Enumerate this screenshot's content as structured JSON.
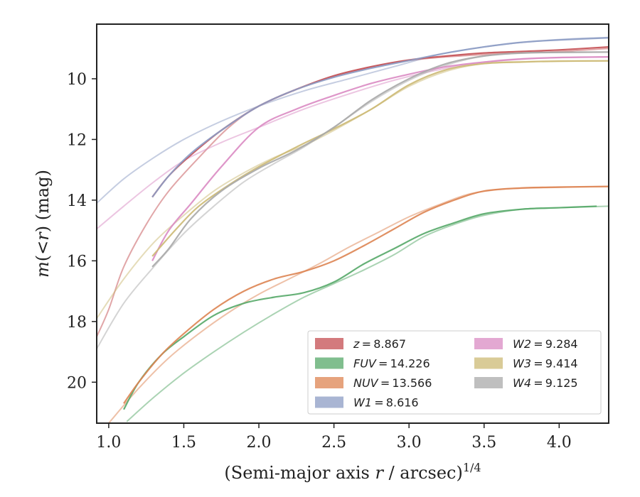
{
  "chart_data": {
    "type": "line",
    "xlabel": "(Semi-major axis r / arcsec)1/4",
    "xlabel_parts": {
      "main": "(Semi-major axis ",
      "var": "r",
      "rest": " / arcsec)",
      "sup": "1/4"
    },
    "ylabel": "m(<r) (mag)",
    "ylabel_parts": {
      "var": "m",
      "mid": "(<",
      "var2": "r",
      "end": ") (mag)"
    },
    "xlim": [
      0.92,
      4.33
    ],
    "ylim": [
      21.35,
      8.2
    ],
    "y_inverted": true,
    "xticks": [
      1.0,
      1.5,
      2.0,
      2.5,
      3.0,
      3.5,
      4.0
    ],
    "xtick_labels": [
      "1.0",
      "1.5",
      "2.0",
      "2.5",
      "3.0",
      "3.5",
      "4.0"
    ],
    "yticks": [
      10,
      12,
      14,
      16,
      18,
      20
    ],
    "ytick_labels": [
      "10",
      "12",
      "14",
      "16",
      "18",
      "20"
    ],
    "grid": false,
    "legend_position": "lower-right",
    "series": [
      {
        "name": "z = 8.867",
        "legend_var": "z",
        "legend_value": "8.867",
        "color": "#c44e52",
        "main": [
          [
            1.29,
            13.9
          ],
          [
            1.4,
            13.2
          ],
          [
            1.55,
            12.5
          ],
          [
            1.75,
            11.7
          ],
          [
            2.0,
            10.9
          ],
          [
            2.25,
            10.35
          ],
          [
            2.5,
            9.9
          ],
          [
            2.75,
            9.6
          ],
          [
            3.0,
            9.38
          ],
          [
            3.25,
            9.25
          ],
          [
            3.5,
            9.15
          ],
          [
            3.75,
            9.1
          ],
          [
            4.0,
            9.05
          ],
          [
            4.33,
            8.95
          ]
        ],
        "ext": [
          [
            0.92,
            18.5
          ],
          [
            1.0,
            17.6
          ],
          [
            1.1,
            16.2
          ],
          [
            1.25,
            14.8
          ],
          [
            1.4,
            13.7
          ],
          [
            1.6,
            12.6
          ],
          [
            1.8,
            11.6
          ],
          [
            2.0,
            10.9
          ],
          [
            2.3,
            10.25
          ],
          [
            2.6,
            9.8
          ],
          [
            3.0,
            9.4
          ],
          [
            3.5,
            9.2
          ],
          [
            4.0,
            9.1
          ],
          [
            4.33,
            9.0
          ]
        ]
      },
      {
        "name": "FUV = 14.226",
        "legend_var": "FUV",
        "legend_value": "14.226",
        "color": "#55a868",
        "main": [
          [
            1.1,
            20.9
          ],
          [
            1.2,
            20.0
          ],
          [
            1.35,
            19.1
          ],
          [
            1.5,
            18.5
          ],
          [
            1.7,
            17.8
          ],
          [
            1.9,
            17.4
          ],
          [
            2.1,
            17.2
          ],
          [
            2.3,
            17.05
          ],
          [
            2.5,
            16.7
          ],
          [
            2.7,
            16.1
          ],
          [
            2.9,
            15.6
          ],
          [
            3.1,
            15.1
          ],
          [
            3.3,
            14.75
          ],
          [
            3.5,
            14.45
          ],
          [
            3.75,
            14.3
          ],
          [
            4.0,
            14.25
          ],
          [
            4.25,
            14.2
          ]
        ],
        "ext": [
          [
            1.12,
            21.3
          ],
          [
            1.3,
            20.5
          ],
          [
            1.5,
            19.7
          ],
          [
            1.7,
            19.0
          ],
          [
            1.9,
            18.35
          ],
          [
            2.1,
            17.75
          ],
          [
            2.3,
            17.2
          ],
          [
            2.5,
            16.75
          ],
          [
            2.7,
            16.3
          ],
          [
            2.9,
            15.8
          ],
          [
            3.1,
            15.2
          ],
          [
            3.3,
            14.8
          ],
          [
            3.5,
            14.5
          ],
          [
            3.75,
            14.3
          ],
          [
            4.0,
            14.25
          ],
          [
            4.33,
            14.2
          ]
        ]
      },
      {
        "name": "NUV = 13.566",
        "legend_var": "NUV",
        "legend_value": "13.566",
        "color": "#dd8452",
        "main": [
          [
            1.1,
            20.7
          ],
          [
            1.2,
            20.0
          ],
          [
            1.35,
            19.1
          ],
          [
            1.5,
            18.4
          ],
          [
            1.7,
            17.6
          ],
          [
            1.9,
            17.0
          ],
          [
            2.1,
            16.6
          ],
          [
            2.3,
            16.35
          ],
          [
            2.5,
            16.0
          ],
          [
            2.7,
            15.5
          ],
          [
            2.9,
            14.95
          ],
          [
            3.1,
            14.4
          ],
          [
            3.3,
            14.0
          ],
          [
            3.5,
            13.7
          ],
          [
            3.75,
            13.6
          ],
          [
            4.0,
            13.57
          ],
          [
            4.33,
            13.55
          ]
        ],
        "ext": [
          [
            1.0,
            21.35
          ],
          [
            1.2,
            20.2
          ],
          [
            1.4,
            19.2
          ],
          [
            1.6,
            18.4
          ],
          [
            1.8,
            17.7
          ],
          [
            2.0,
            17.1
          ],
          [
            2.2,
            16.6
          ],
          [
            2.4,
            16.1
          ],
          [
            2.6,
            15.55
          ],
          [
            2.8,
            15.05
          ],
          [
            3.0,
            14.55
          ],
          [
            3.2,
            14.15
          ],
          [
            3.4,
            13.8
          ],
          [
            3.6,
            13.65
          ],
          [
            3.8,
            13.6
          ],
          [
            4.33,
            13.55
          ]
        ]
      },
      {
        "name": "W1 = 8.616",
        "legend_var": "W1",
        "legend_value": "8.616",
        "color": "#8c9cc4",
        "main": [
          [
            1.29,
            13.9
          ],
          [
            1.4,
            13.2
          ],
          [
            1.55,
            12.45
          ],
          [
            1.75,
            11.7
          ],
          [
            2.0,
            10.9
          ],
          [
            2.25,
            10.35
          ],
          [
            2.5,
            9.95
          ],
          [
            2.75,
            9.65
          ],
          [
            3.0,
            9.4
          ],
          [
            3.25,
            9.15
          ],
          [
            3.5,
            8.95
          ],
          [
            3.75,
            8.8
          ],
          [
            4.0,
            8.72
          ],
          [
            4.33,
            8.65
          ]
        ],
        "ext": [
          [
            0.92,
            14.1
          ],
          [
            1.1,
            13.3
          ],
          [
            1.3,
            12.6
          ],
          [
            1.5,
            12.0
          ],
          [
            1.75,
            11.4
          ],
          [
            2.0,
            10.9
          ],
          [
            2.3,
            10.4
          ],
          [
            2.6,
            10.0
          ],
          [
            2.9,
            9.6
          ],
          [
            3.2,
            9.2
          ],
          [
            3.5,
            8.95
          ],
          [
            3.8,
            8.78
          ],
          [
            4.1,
            8.68
          ],
          [
            4.33,
            8.64
          ]
        ]
      },
      {
        "name": "W2 = 9.284",
        "legend_var": "W2",
        "legend_value": "9.284",
        "color": "#da8bc3",
        "main": [
          [
            1.29,
            16.0
          ],
          [
            1.4,
            15.0
          ],
          [
            1.55,
            14.1
          ],
          [
            1.75,
            12.9
          ],
          [
            2.0,
            11.6
          ],
          [
            2.25,
            11.0
          ],
          [
            2.5,
            10.55
          ],
          [
            2.75,
            10.15
          ],
          [
            3.0,
            9.85
          ],
          [
            3.25,
            9.6
          ],
          [
            3.5,
            9.45
          ],
          [
            3.75,
            9.35
          ],
          [
            4.0,
            9.3
          ],
          [
            4.33,
            9.28
          ]
        ],
        "ext": [
          [
            0.92,
            14.95
          ],
          [
            1.1,
            14.2
          ],
          [
            1.3,
            13.4
          ],
          [
            1.5,
            12.7
          ],
          [
            1.75,
            12.1
          ],
          [
            2.0,
            11.6
          ],
          [
            2.3,
            11.0
          ],
          [
            2.6,
            10.5
          ],
          [
            2.9,
            10.05
          ],
          [
            3.2,
            9.7
          ],
          [
            3.5,
            9.45
          ],
          [
            3.8,
            9.33
          ],
          [
            4.33,
            9.28
          ]
        ]
      },
      {
        "name": "W3 = 9.414",
        "legend_var": "W3",
        "legend_value": "9.414",
        "color": "#ccb974",
        "main": [
          [
            1.29,
            15.85
          ],
          [
            1.45,
            14.95
          ],
          [
            1.6,
            14.2
          ],
          [
            1.8,
            13.5
          ],
          [
            2.0,
            12.9
          ],
          [
            2.25,
            12.25
          ],
          [
            2.5,
            11.65
          ],
          [
            2.75,
            11.0
          ],
          [
            3.0,
            10.2
          ],
          [
            3.25,
            9.7
          ],
          [
            3.5,
            9.5
          ],
          [
            3.75,
            9.45
          ],
          [
            4.0,
            9.42
          ],
          [
            4.33,
            9.41
          ]
        ],
        "ext": [
          [
            0.92,
            17.9
          ],
          [
            1.1,
            16.6
          ],
          [
            1.3,
            15.4
          ],
          [
            1.5,
            14.5
          ],
          [
            1.7,
            13.7
          ],
          [
            1.9,
            13.1
          ],
          [
            2.1,
            12.6
          ],
          [
            2.3,
            12.2
          ],
          [
            2.5,
            11.7
          ],
          [
            2.75,
            11.0
          ],
          [
            3.0,
            10.25
          ],
          [
            3.25,
            9.75
          ],
          [
            3.5,
            9.5
          ],
          [
            3.8,
            9.43
          ],
          [
            4.33,
            9.41
          ]
        ]
      },
      {
        "name": "W4 = 9.125",
        "legend_var": "W4",
        "legend_value": "9.125",
        "color": "#a9a9a9",
        "main": [
          [
            1.29,
            16.2
          ],
          [
            1.4,
            15.6
          ],
          [
            1.55,
            14.6
          ],
          [
            1.75,
            13.7
          ],
          [
            2.0,
            12.95
          ],
          [
            2.25,
            12.35
          ],
          [
            2.5,
            11.6
          ],
          [
            2.75,
            10.7
          ],
          [
            3.0,
            10.0
          ],
          [
            3.25,
            9.5
          ],
          [
            3.5,
            9.25
          ],
          [
            3.75,
            9.15
          ],
          [
            4.0,
            9.13
          ],
          [
            4.33,
            9.12
          ]
        ],
        "ext": [
          [
            0.92,
            18.9
          ],
          [
            1.1,
            17.4
          ],
          [
            1.3,
            16.2
          ],
          [
            1.5,
            15.1
          ],
          [
            1.7,
            14.2
          ],
          [
            1.9,
            13.4
          ],
          [
            2.1,
            12.8
          ],
          [
            2.3,
            12.25
          ],
          [
            2.5,
            11.6
          ],
          [
            2.75,
            10.75
          ],
          [
            3.0,
            10.05
          ],
          [
            3.25,
            9.55
          ],
          [
            3.5,
            9.25
          ],
          [
            3.8,
            9.15
          ],
          [
            4.33,
            9.12
          ]
        ]
      }
    ]
  }
}
